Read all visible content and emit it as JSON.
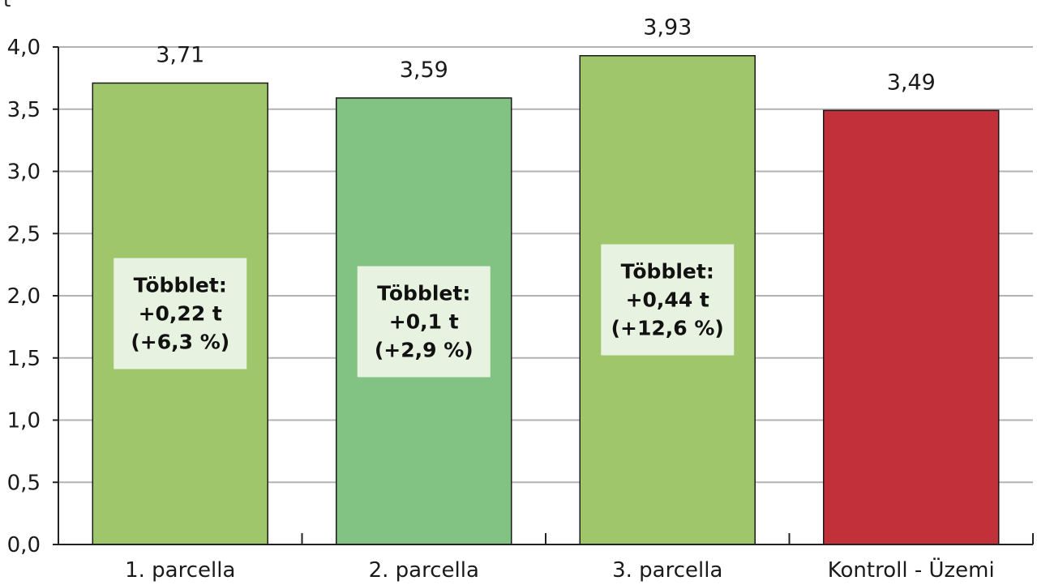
{
  "chart_data": {
    "type": "bar",
    "y_axis_unit": "t",
    "categories": [
      "1. parcella",
      "2. parcella",
      "3. parcella",
      "Kontroll - Üzemi"
    ],
    "values": [
      3.71,
      3.59,
      3.93,
      3.49
    ],
    "value_labels": [
      "3,71",
      "3,59",
      "3,93",
      "3,49"
    ],
    "colors": [
      "#9fc66b",
      "#82c282",
      "#9fc66b",
      "#c2303a"
    ],
    "ylim": [
      0,
      4.0
    ],
    "yticks": [
      0,
      0.5,
      1.0,
      1.5,
      2.0,
      2.5,
      3.0,
      3.5,
      4.0
    ],
    "ytick_labels": [
      "0,0",
      "0,5",
      "1,0",
      "1,5",
      "2,0",
      "2,5",
      "3,0",
      "3,5",
      "4,0"
    ],
    "grid": true,
    "annotations": [
      {
        "bar": 0,
        "lines": [
          "Többlet:",
          "+0,22 t",
          "(+6,3 %)"
        ]
      },
      {
        "bar": 1,
        "lines": [
          "Többlet:",
          "+0,1 t",
          "(+2,9 %)"
        ]
      },
      {
        "bar": 2,
        "lines": [
          "Többlet:",
          "+0,44 t",
          "(+12,6 %)"
        ]
      }
    ],
    "annotation_box_color": "#e8f2e0"
  }
}
